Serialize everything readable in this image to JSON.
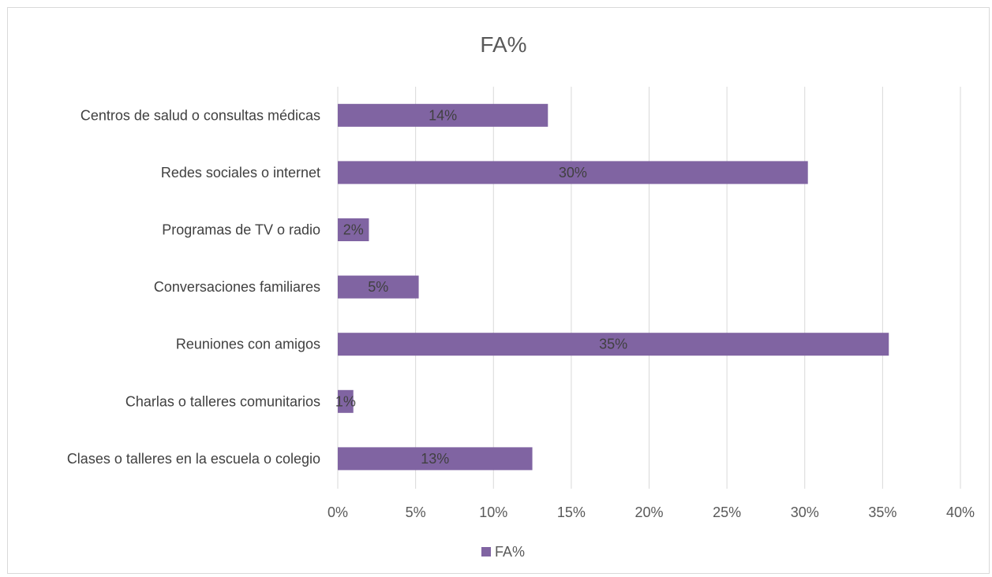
{
  "chart_data": {
    "type": "bar",
    "orientation": "horizontal",
    "title": "FA%",
    "categories": [
      "Centros de salud o consultas médicas",
      "Redes sociales o internet",
      "Programas de TV o radio",
      "Conversaciones familiares",
      "Reuniones con amigos",
      "Charlas o talleres comunitarios",
      "Clases o talleres en la escuela o colegio"
    ],
    "series": [
      {
        "name": "FA%",
        "values": [
          13.5,
          30.2,
          2.0,
          5.2,
          35.4,
          1.0,
          12.5
        ],
        "data_labels": [
          "14%",
          "30%",
          "2%",
          "5%",
          "35%",
          "1%",
          "13%"
        ],
        "color": "#8064a2"
      }
    ],
    "xlim": [
      0,
      40
    ],
    "x_ticks": [
      "0%",
      "5%",
      "10%",
      "15%",
      "20%",
      "25%",
      "30%",
      "35%",
      "40%"
    ],
    "grid": true,
    "legend": {
      "position": "bottom",
      "entries": [
        "FA%"
      ]
    }
  }
}
